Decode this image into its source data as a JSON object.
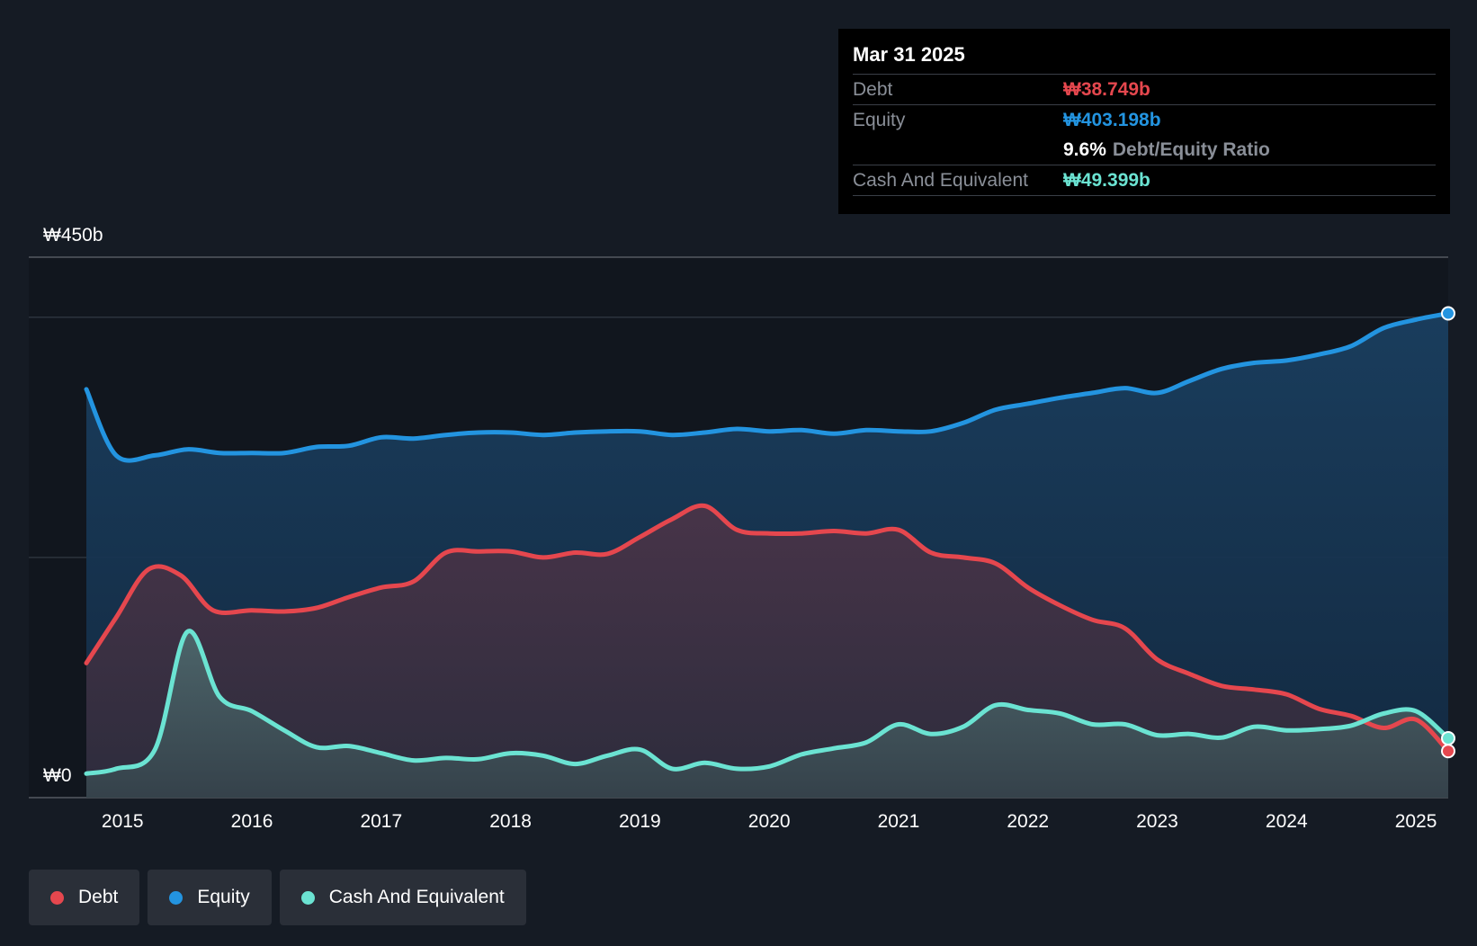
{
  "colors": {
    "debt": "#e5474e",
    "equity": "#2394e0",
    "cash": "#6be3d2",
    "background": "#151b24"
  },
  "tooltip": {
    "date": "Mar 31 2025",
    "debt_label": "Debt",
    "debt_value": "₩38.749b",
    "equity_label": "Equity",
    "equity_value": "₩403.198b",
    "ratio_value": "9.6%",
    "ratio_label": "Debt/Equity Ratio",
    "cash_label": "Cash And Equivalent",
    "cash_value": "₩49.399b"
  },
  "legend": [
    {
      "label": "Debt",
      "color": "#e5474e"
    },
    {
      "label": "Equity",
      "color": "#2394e0"
    },
    {
      "label": "Cash And Equivalent",
      "color": "#6be3d2"
    }
  ],
  "chart_data": {
    "type": "area",
    "title": "",
    "xlabel": "",
    "ylabel": "",
    "y_top_label": "₩450b",
    "y_bottom_label": "₩0",
    "ylim": [
      0,
      450
    ],
    "xlim": [
      2014.72,
      2025.25
    ],
    "x_ticks": [
      "2015",
      "2016",
      "2017",
      "2018",
      "2019",
      "2020",
      "2021",
      "2022",
      "2023",
      "2024",
      "2025"
    ],
    "series": [
      {
        "name": "Equity",
        "points": [
          [
            2014.72,
            340
          ],
          [
            2014.95,
            285
          ],
          [
            2015.25,
            285
          ],
          [
            2015.5,
            290
          ],
          [
            2015.75,
            287
          ],
          [
            2016.0,
            287
          ],
          [
            2016.25,
            287
          ],
          [
            2016.5,
            292
          ],
          [
            2016.75,
            293
          ],
          [
            2017.0,
            300
          ],
          [
            2017.25,
            299
          ],
          [
            2017.5,
            302
          ],
          [
            2017.75,
            304
          ],
          [
            2018.0,
            304
          ],
          [
            2018.25,
            302
          ],
          [
            2018.5,
            304
          ],
          [
            2018.75,
            305
          ],
          [
            2019.0,
            305
          ],
          [
            2019.25,
            302
          ],
          [
            2019.5,
            304
          ],
          [
            2019.75,
            307
          ],
          [
            2020.0,
            305
          ],
          [
            2020.25,
            306
          ],
          [
            2020.5,
            303
          ],
          [
            2020.75,
            306
          ],
          [
            2021.0,
            305
          ],
          [
            2021.25,
            305
          ],
          [
            2021.5,
            312
          ],
          [
            2021.75,
            323
          ],
          [
            2022.0,
            328
          ],
          [
            2022.25,
            333
          ],
          [
            2022.5,
            337
          ],
          [
            2022.75,
            341
          ],
          [
            2023.0,
            337
          ],
          [
            2023.25,
            347
          ],
          [
            2023.5,
            357
          ],
          [
            2023.75,
            362
          ],
          [
            2024.0,
            364
          ],
          [
            2024.25,
            369
          ],
          [
            2024.5,
            376
          ],
          [
            2024.75,
            391
          ],
          [
            2025.0,
            398
          ],
          [
            2025.25,
            403.198
          ]
        ]
      },
      {
        "name": "Debt",
        "points": [
          [
            2014.72,
            112
          ],
          [
            2014.95,
            150
          ],
          [
            2015.2,
            190
          ],
          [
            2015.45,
            185
          ],
          [
            2015.7,
            156
          ],
          [
            2016.0,
            156
          ],
          [
            2016.25,
            155
          ],
          [
            2016.5,
            158
          ],
          [
            2016.75,
            167
          ],
          [
            2017.0,
            175
          ],
          [
            2017.25,
            180
          ],
          [
            2017.5,
            204
          ],
          [
            2017.75,
            205
          ],
          [
            2018.0,
            205
          ],
          [
            2018.25,
            200
          ],
          [
            2018.5,
            204
          ],
          [
            2018.75,
            203
          ],
          [
            2019.0,
            217
          ],
          [
            2019.25,
            232
          ],
          [
            2019.5,
            243
          ],
          [
            2019.75,
            223
          ],
          [
            2020.0,
            220
          ],
          [
            2020.25,
            220
          ],
          [
            2020.5,
            222
          ],
          [
            2020.75,
            220
          ],
          [
            2021.0,
            223
          ],
          [
            2021.25,
            204
          ],
          [
            2021.5,
            200
          ],
          [
            2021.75,
            195
          ],
          [
            2022.0,
            175
          ],
          [
            2022.25,
            160
          ],
          [
            2022.5,
            148
          ],
          [
            2022.75,
            141
          ],
          [
            2023.0,
            115
          ],
          [
            2023.25,
            103
          ],
          [
            2023.5,
            93
          ],
          [
            2023.75,
            90
          ],
          [
            2024.0,
            86
          ],
          [
            2024.25,
            74
          ],
          [
            2024.5,
            68
          ],
          [
            2024.75,
            58
          ],
          [
            2025.0,
            65
          ],
          [
            2025.25,
            38.749
          ]
        ]
      },
      {
        "name": "Cash And Equivalent",
        "points": [
          [
            2014.72,
            20
          ],
          [
            2014.95,
            24
          ],
          [
            2015.25,
            40
          ],
          [
            2015.5,
            138
          ],
          [
            2015.75,
            84
          ],
          [
            2016.0,
            72
          ],
          [
            2016.25,
            56
          ],
          [
            2016.5,
            42
          ],
          [
            2016.75,
            43
          ],
          [
            2017.0,
            37
          ],
          [
            2017.25,
            31
          ],
          [
            2017.5,
            33
          ],
          [
            2017.75,
            32
          ],
          [
            2018.0,
            37
          ],
          [
            2018.25,
            35
          ],
          [
            2018.5,
            28
          ],
          [
            2018.75,
            35
          ],
          [
            2019.0,
            40
          ],
          [
            2019.25,
            24
          ],
          [
            2019.5,
            29
          ],
          [
            2019.75,
            24
          ],
          [
            2020.0,
            26
          ],
          [
            2020.25,
            36
          ],
          [
            2020.5,
            41
          ],
          [
            2020.75,
            46
          ],
          [
            2021.0,
            61
          ],
          [
            2021.25,
            53
          ],
          [
            2021.5,
            59
          ],
          [
            2021.75,
            77
          ],
          [
            2022.0,
            73
          ],
          [
            2022.25,
            70
          ],
          [
            2022.5,
            61
          ],
          [
            2022.75,
            61
          ],
          [
            2023.0,
            52
          ],
          [
            2023.25,
            53
          ],
          [
            2023.5,
            50
          ],
          [
            2023.75,
            59
          ],
          [
            2024.0,
            56
          ],
          [
            2024.25,
            57
          ],
          [
            2024.5,
            60
          ],
          [
            2024.75,
            70
          ],
          [
            2025.0,
            72
          ],
          [
            2025.25,
            49.399
          ]
        ]
      }
    ]
  }
}
